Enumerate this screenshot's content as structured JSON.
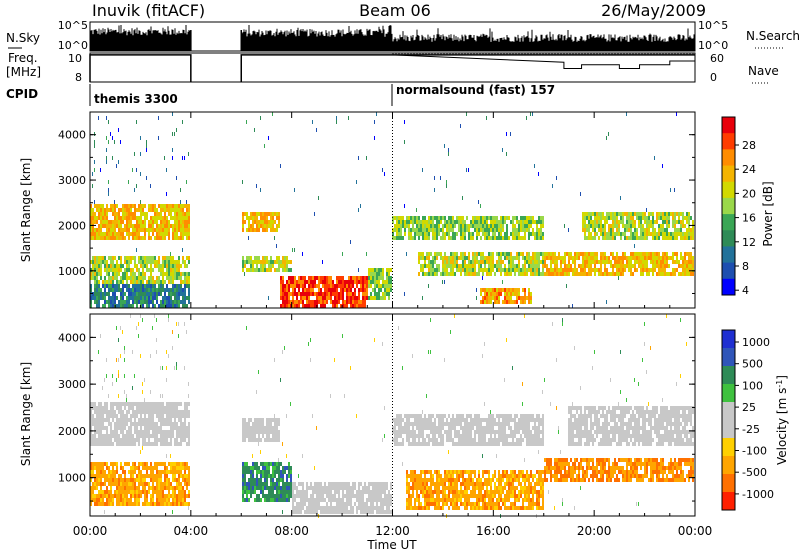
{
  "header": {
    "station": "Inuvik (fitACF)",
    "beam": "Beam 06",
    "date": "26/May/2009"
  },
  "chart_data": [
    {
      "type": "line",
      "panel": "noise",
      "left_label": "N.Sky",
      "right_label": "N.Search",
      "y_ticks_left": [
        "10^5",
        "10^0"
      ],
      "y_ticks_right": [
        "10^5",
        "10^0"
      ],
      "gaps_hours": [
        [
          4.0,
          6.0
        ]
      ]
    },
    {
      "type": "line",
      "panel": "frequency",
      "left_label": "Freq.",
      "left_unit": "[MHz]",
      "right_label": "Nave",
      "y_ticks_left": [
        "10",
        "8"
      ],
      "y_ticks_right": [
        "60",
        "0"
      ],
      "freq_level": 10.8,
      "nave_steps": [
        [
          12.0,
          0.8
        ],
        [
          18.8,
          0.55
        ],
        [
          19.5,
          0.7
        ],
        [
          21.0,
          0.55
        ],
        [
          21.8,
          0.7
        ],
        [
          23.0,
          0.85
        ]
      ]
    },
    {
      "type": "table",
      "panel": "cpid",
      "label": "CPID",
      "segments": [
        {
          "name": "themis 3300",
          "start_hour": 0.0
        },
        {
          "name": "normalsound (fast) 157",
          "start_hour": 12.0
        }
      ]
    },
    {
      "type": "heatmap",
      "panel": "power",
      "ylabel": "Slant Range [km]",
      "ylim": [
        180,
        4500
      ],
      "y_ticks": [
        1000,
        2000,
        3000,
        4000
      ],
      "xlim": [
        0,
        24
      ],
      "colorbar_label": "Power [dB]",
      "colorbar_ticks": [
        "28",
        "24",
        "20",
        "16",
        "12",
        "8",
        "4"
      ],
      "colorbar_colors": [
        "#e8000b",
        "#ff3d00",
        "#ff8c00",
        "#f4b400",
        "#d2d900",
        "#9ad84a",
        "#3aa655",
        "#2e8b57",
        "#22729a",
        "#1e4fb0",
        "#0000ff"
      ],
      "gaps_hours": [
        [
          4.0,
          6.0
        ]
      ],
      "bands": [
        {
          "t": [
            0.0,
            4.0
          ],
          "r": [
            1700,
            2450
          ],
          "level": 0.7
        },
        {
          "t": [
            0.0,
            4.0
          ],
          "r": [
            700,
            1350
          ],
          "level": 0.55
        },
        {
          "t": [
            0.0,
            4.0
          ],
          "r": [
            200,
            700
          ],
          "level": 0.25
        },
        {
          "t": [
            6.0,
            7.5
          ],
          "r": [
            1850,
            2300
          ],
          "level": 0.7
        },
        {
          "t": [
            6.0,
            8.0
          ],
          "r": [
            1000,
            1350
          ],
          "level": 0.55
        },
        {
          "t": [
            7.5,
            11.0
          ],
          "r": [
            200,
            900
          ],
          "level": 0.92
        },
        {
          "t": [
            11.0,
            12.0
          ],
          "r": [
            400,
            1100
          ],
          "level": 0.5
        },
        {
          "t": [
            12.0,
            18.0
          ],
          "r": [
            1700,
            2200
          ],
          "level": 0.5
        },
        {
          "t": [
            13.0,
            18.0
          ],
          "r": [
            900,
            1400
          ],
          "level": 0.55
        },
        {
          "t": [
            15.5,
            17.5
          ],
          "r": [
            300,
            650
          ],
          "level": 0.75
        },
        {
          "t": [
            18.0,
            24.0
          ],
          "r": [
            900,
            1400
          ],
          "level": 0.7
        },
        {
          "t": [
            19.5,
            24.0
          ],
          "r": [
            1700,
            2300
          ],
          "level": 0.55
        }
      ]
    },
    {
      "type": "heatmap",
      "panel": "velocity",
      "ylabel": "Slant Range [km]",
      "ylim": [
        180,
        4500
      ],
      "y_ticks": [
        1000,
        2000,
        3000,
        4000
      ],
      "xlim": [
        0,
        24
      ],
      "xlabel": "Time UT",
      "x_ticks": [
        "00:00",
        "04:00",
        "08:00",
        "12:00",
        "16:00",
        "20:00",
        "00:00"
      ],
      "colorbar_label": "Velocity [m s^-1]",
      "colorbar_ticks": [
        "1000",
        "500",
        "100",
        "25",
        "-25",
        "-100",
        "-500",
        "-1000"
      ],
      "colorbar_colors": [
        "#1f2fd1",
        "#2f55b9",
        "#2e8b57",
        "#3fc13f",
        "#c8c8c8",
        "#c8c8c8",
        "#ffd000",
        "#ffa500",
        "#ff7000",
        "#ff2000"
      ],
      "gaps_hours": [
        [
          4.0,
          6.0
        ]
      ],
      "bands": [
        {
          "t": [
            0.0,
            4.0
          ],
          "r": [
            1700,
            2600
          ],
          "level": 0.0
        },
        {
          "t": [
            0.0,
            4.0
          ],
          "r": [
            400,
            1300
          ],
          "level": -0.55
        },
        {
          "t": [
            6.0,
            7.5
          ],
          "r": [
            1800,
            2300
          ],
          "level": 0.0
        },
        {
          "t": [
            6.0,
            8.0
          ],
          "r": [
            500,
            1300
          ],
          "level": 0.55
        },
        {
          "t": [
            8.0,
            12.0
          ],
          "r": [
            200,
            900
          ],
          "level": 0.0
        },
        {
          "t": [
            12.0,
            18.0
          ],
          "r": [
            1700,
            2400
          ],
          "level": 0.0
        },
        {
          "t": [
            12.5,
            18.0
          ],
          "r": [
            300,
            1200
          ],
          "level": -0.55
        },
        {
          "t": [
            18.0,
            24.0
          ],
          "r": [
            900,
            1400
          ],
          "level": -0.65
        },
        {
          "t": [
            19.0,
            24.0
          ],
          "r": [
            1700,
            2500
          ],
          "level": 0.0
        }
      ]
    }
  ]
}
